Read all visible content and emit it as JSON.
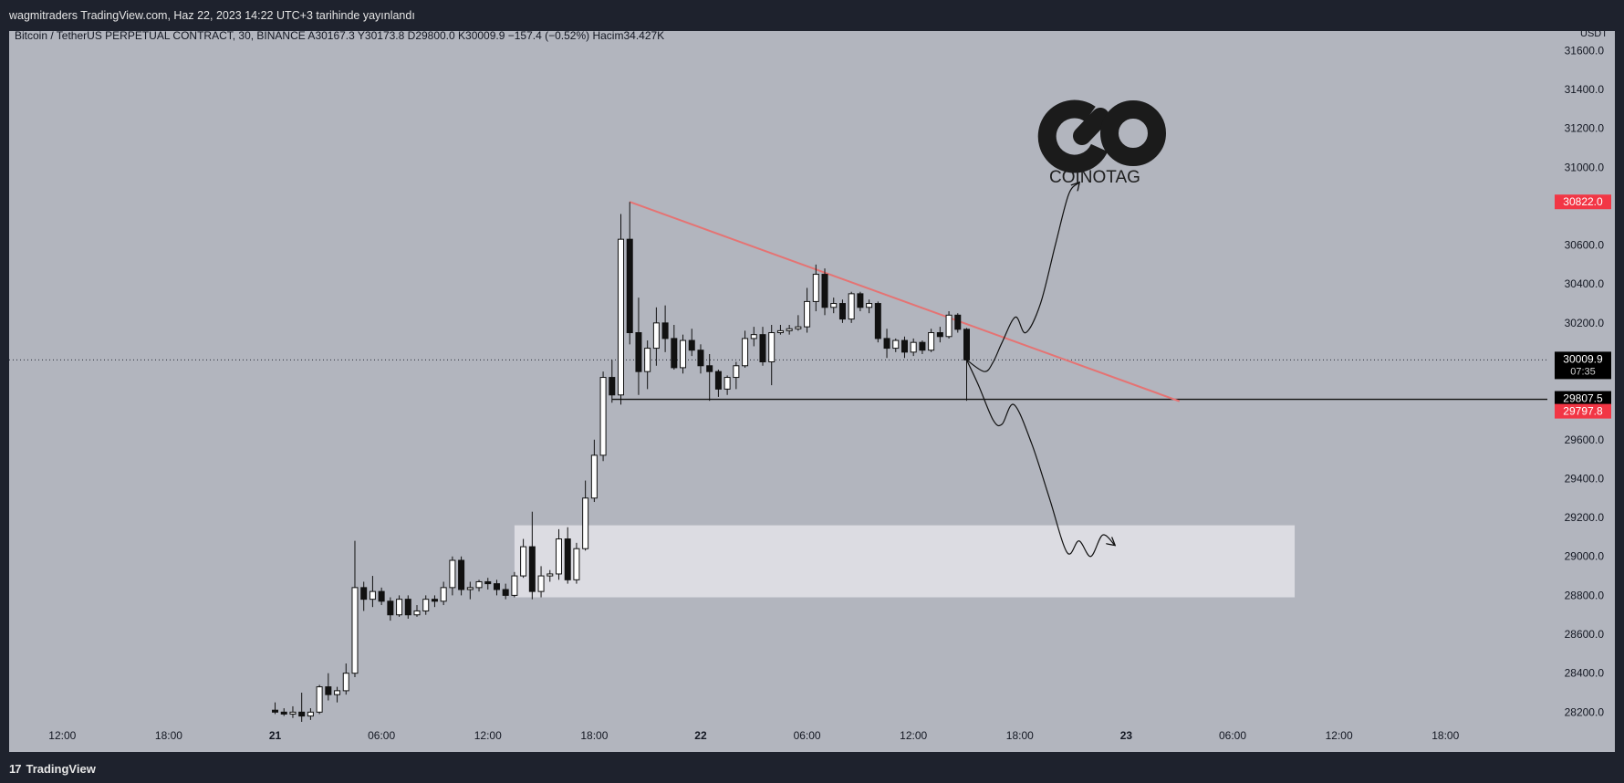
{
  "header": {
    "published": "wagmitraders TradingView.com, Haz 22, 2023 14:22 UTC+3 tarihinde yayınlandı"
  },
  "legend": {
    "text": "Bitcoin / TetherUS PERPETUAL CONTRACT, 30, BINANCE  A30167.3  Y30173.8  D29800.0  K30009.9  −157.4 (−0.52%)  Hacim34.427K"
  },
  "watermark": {
    "text": "COINOTAG"
  },
  "footer": {
    "brand": "TradingView",
    "brand_icon": "tradingview-logo-icon"
  },
  "colors": {
    "background": "#b2b5be",
    "frame": "#1e222d",
    "trendline": "#e57373",
    "zone": "#dcdce2",
    "bull_body": "#ffffff",
    "bear_body": "#111111",
    "red_label": "#f23645",
    "black_label": "#000000"
  },
  "chart_data": {
    "type": "candlestick",
    "title": "Bitcoin / TetherUS PERPETUAL CONTRACT, 30, BINANCE",
    "y_unit": "USDT",
    "ylim": [
      28150,
      31700
    ],
    "yticks": [
      31600.0,
      31400.0,
      31200.0,
      31000.0,
      30600.0,
      30400.0,
      30200.0,
      29600.0,
      29400.0,
      29200.0,
      29000.0,
      28800.0,
      28600.0,
      28400.0,
      28200.0
    ],
    "ytick_labels": [
      "31600.0",
      "31400.0",
      "31200.0",
      "31000.0",
      "30600.0",
      "30400.0",
      "30200.0",
      "29600.0",
      "29400.0",
      "29200.0",
      "29000.0",
      "28800.0",
      "28600.0",
      "28400.0",
      "28200.0"
    ],
    "xlim": [
      "2023-06-20 09:00",
      "2023-06-23 23:45"
    ],
    "xticks": [
      "2023-06-20 12:00",
      "2023-06-20 18:00",
      "2023-06-21 00:00",
      "2023-06-21 06:00",
      "2023-06-21 12:00",
      "2023-06-21 18:00",
      "2023-06-22 00:00",
      "2023-06-22 06:00",
      "2023-06-22 12:00",
      "2023-06-22 18:00",
      "2023-06-23 00:00",
      "2023-06-23 06:00",
      "2023-06-23 12:00",
      "2023-06-23 18:00"
    ],
    "xtick_labels": [
      "12:00",
      "18:00",
      "21",
      "06:00",
      "12:00",
      "18:00",
      "22",
      "06:00",
      "12:00",
      "18:00",
      "23",
      "06:00",
      "12:00",
      "18:00"
    ],
    "bold_xticks": [
      "21",
      "22",
      "23"
    ],
    "candles": [
      {
        "t": "2023-06-21 00:00",
        "o": 28210,
        "h": 28250,
        "l": 28190,
        "c": 28200
      },
      {
        "t": "2023-06-21 00:30",
        "o": 28200,
        "h": 28220,
        "l": 28180,
        "c": 28190
      },
      {
        "t": "2023-06-21 01:00",
        "o": 28190,
        "h": 28230,
        "l": 28170,
        "c": 28200
      },
      {
        "t": "2023-06-21 01:30",
        "o": 28200,
        "h": 28300,
        "l": 28150,
        "c": 28180
      },
      {
        "t": "2023-06-21 02:00",
        "o": 28180,
        "h": 28220,
        "l": 28160,
        "c": 28200
      },
      {
        "t": "2023-06-21 02:30",
        "o": 28200,
        "h": 28340,
        "l": 28190,
        "c": 28330
      },
      {
        "t": "2023-06-21 03:00",
        "o": 28330,
        "h": 28400,
        "l": 28260,
        "c": 28290
      },
      {
        "t": "2023-06-21 03:30",
        "o": 28290,
        "h": 28330,
        "l": 28250,
        "c": 28310
      },
      {
        "t": "2023-06-21 04:00",
        "o": 28310,
        "h": 28450,
        "l": 28290,
        "c": 28400
      },
      {
        "t": "2023-06-21 04:30",
        "o": 28400,
        "h": 29080,
        "l": 28380,
        "c": 28840
      },
      {
        "t": "2023-06-21 05:00",
        "o": 28840,
        "h": 28870,
        "l": 28720,
        "c": 28780
      },
      {
        "t": "2023-06-21 05:30",
        "o": 28780,
        "h": 28900,
        "l": 28740,
        "c": 28820
      },
      {
        "t": "2023-06-21 06:00",
        "o": 28820,
        "h": 28840,
        "l": 28750,
        "c": 28770
      },
      {
        "t": "2023-06-21 06:30",
        "o": 28770,
        "h": 28790,
        "l": 28670,
        "c": 28700
      },
      {
        "t": "2023-06-21 07:00",
        "o": 28700,
        "h": 28800,
        "l": 28690,
        "c": 28780
      },
      {
        "t": "2023-06-21 07:30",
        "o": 28780,
        "h": 28800,
        "l": 28680,
        "c": 28700
      },
      {
        "t": "2023-06-21 08:00",
        "o": 28700,
        "h": 28750,
        "l": 28690,
        "c": 28720
      },
      {
        "t": "2023-06-21 08:30",
        "o": 28720,
        "h": 28800,
        "l": 28700,
        "c": 28780
      },
      {
        "t": "2023-06-21 09:00",
        "o": 28780,
        "h": 28800,
        "l": 28740,
        "c": 28770
      },
      {
        "t": "2023-06-21 09:30",
        "o": 28770,
        "h": 28870,
        "l": 28750,
        "c": 28840
      },
      {
        "t": "2023-06-21 10:00",
        "o": 28840,
        "h": 29000,
        "l": 28800,
        "c": 28980
      },
      {
        "t": "2023-06-21 10:30",
        "o": 28980,
        "h": 29000,
        "l": 28800,
        "c": 28830
      },
      {
        "t": "2023-06-21 11:00",
        "o": 28830,
        "h": 28870,
        "l": 28780,
        "c": 28840
      },
      {
        "t": "2023-06-21 11:30",
        "o": 28840,
        "h": 28880,
        "l": 28820,
        "c": 28870
      },
      {
        "t": "2023-06-21 12:00",
        "o": 28870,
        "h": 28890,
        "l": 28830,
        "c": 28860
      },
      {
        "t": "2023-06-21 12:30",
        "o": 28860,
        "h": 28880,
        "l": 28800,
        "c": 28830
      },
      {
        "t": "2023-06-21 13:00",
        "o": 28830,
        "h": 28860,
        "l": 28780,
        "c": 28800
      },
      {
        "t": "2023-06-21 13:30",
        "o": 28800,
        "h": 28920,
        "l": 28790,
        "c": 28900
      },
      {
        "t": "2023-06-21 14:00",
        "o": 28900,
        "h": 29090,
        "l": 28890,
        "c": 29050
      },
      {
        "t": "2023-06-21 14:30",
        "o": 29050,
        "h": 29230,
        "l": 28780,
        "c": 28820
      },
      {
        "t": "2023-06-21 15:00",
        "o": 28820,
        "h": 28950,
        "l": 28790,
        "c": 28900
      },
      {
        "t": "2023-06-21 15:30",
        "o": 28900,
        "h": 28930,
        "l": 28870,
        "c": 28910
      },
      {
        "t": "2023-06-21 16:00",
        "o": 28910,
        "h": 29140,
        "l": 28880,
        "c": 29090
      },
      {
        "t": "2023-06-21 16:30",
        "o": 29090,
        "h": 29150,
        "l": 28860,
        "c": 28880
      },
      {
        "t": "2023-06-21 17:00",
        "o": 28880,
        "h": 29070,
        "l": 28860,
        "c": 29040
      },
      {
        "t": "2023-06-21 17:30",
        "o": 29040,
        "h": 29390,
        "l": 29030,
        "c": 29300
      },
      {
        "t": "2023-06-21 18:00",
        "o": 29300,
        "h": 29600,
        "l": 29280,
        "c": 29520
      },
      {
        "t": "2023-06-21 18:30",
        "o": 29520,
        "h": 29950,
        "l": 29490,
        "c": 29920
      },
      {
        "t": "2023-06-21 19:00",
        "o": 29920,
        "h": 30010,
        "l": 29790,
        "c": 29830
      },
      {
        "t": "2023-06-21 19:30",
        "o": 29830,
        "h": 30760,
        "l": 29780,
        "c": 30630
      },
      {
        "t": "2023-06-21 20:00",
        "o": 30630,
        "h": 30822,
        "l": 30090,
        "c": 30150
      },
      {
        "t": "2023-06-21 20:30",
        "o": 30150,
        "h": 30330,
        "l": 29830,
        "c": 29950
      },
      {
        "t": "2023-06-21 21:00",
        "o": 29950,
        "h": 30110,
        "l": 29860,
        "c": 30070
      },
      {
        "t": "2023-06-21 21:30",
        "o": 30070,
        "h": 30280,
        "l": 29980,
        "c": 30200
      },
      {
        "t": "2023-06-21 22:00",
        "o": 30200,
        "h": 30290,
        "l": 30050,
        "c": 30120
      },
      {
        "t": "2023-06-21 22:30",
        "o": 30120,
        "h": 30190,
        "l": 29960,
        "c": 29970
      },
      {
        "t": "2023-06-21 23:00",
        "o": 29970,
        "h": 30140,
        "l": 29940,
        "c": 30110
      },
      {
        "t": "2023-06-21 23:30",
        "o": 30110,
        "h": 30170,
        "l": 30030,
        "c": 30060
      },
      {
        "t": "2023-06-22 00:00",
        "o": 30060,
        "h": 30090,
        "l": 29940,
        "c": 29980
      },
      {
        "t": "2023-06-22 00:30",
        "o": 29980,
        "h": 30040,
        "l": 29800,
        "c": 29950
      },
      {
        "t": "2023-06-22 01:00",
        "o": 29950,
        "h": 29960,
        "l": 29820,
        "c": 29860
      },
      {
        "t": "2023-06-22 01:30",
        "o": 29860,
        "h": 29930,
        "l": 29830,
        "c": 29920
      },
      {
        "t": "2023-06-22 02:00",
        "o": 29920,
        "h": 30000,
        "l": 29860,
        "c": 29980
      },
      {
        "t": "2023-06-22 02:30",
        "o": 29980,
        "h": 30160,
        "l": 29970,
        "c": 30120
      },
      {
        "t": "2023-06-22 03:00",
        "o": 30120,
        "h": 30180,
        "l": 30080,
        "c": 30140
      },
      {
        "t": "2023-06-22 03:30",
        "o": 30140,
        "h": 30180,
        "l": 29980,
        "c": 30000
      },
      {
        "t": "2023-06-22 04:00",
        "o": 30000,
        "h": 30190,
        "l": 29880,
        "c": 30150
      },
      {
        "t": "2023-06-22 04:30",
        "o": 30150,
        "h": 30190,
        "l": 30140,
        "c": 30160
      },
      {
        "t": "2023-06-22 05:00",
        "o": 30160,
        "h": 30190,
        "l": 30140,
        "c": 30170
      },
      {
        "t": "2023-06-22 05:30",
        "o": 30170,
        "h": 30240,
        "l": 30160,
        "c": 30180
      },
      {
        "t": "2023-06-22 06:00",
        "o": 30180,
        "h": 30380,
        "l": 30150,
        "c": 30310
      },
      {
        "t": "2023-06-22 06:30",
        "o": 30310,
        "h": 30500,
        "l": 30260,
        "c": 30450
      },
      {
        "t": "2023-06-22 07:00",
        "o": 30450,
        "h": 30480,
        "l": 30240,
        "c": 30280
      },
      {
        "t": "2023-06-22 07:30",
        "o": 30280,
        "h": 30330,
        "l": 30250,
        "c": 30300
      },
      {
        "t": "2023-06-22 08:00",
        "o": 30300,
        "h": 30320,
        "l": 30200,
        "c": 30220
      },
      {
        "t": "2023-06-22 08:30",
        "o": 30220,
        "h": 30360,
        "l": 30200,
        "c": 30350
      },
      {
        "t": "2023-06-22 09:00",
        "o": 30350,
        "h": 30360,
        "l": 30260,
        "c": 30280
      },
      {
        "t": "2023-06-22 09:30",
        "o": 30280,
        "h": 30320,
        "l": 30250,
        "c": 30300
      },
      {
        "t": "2023-06-22 10:00",
        "o": 30300,
        "h": 30310,
        "l": 30100,
        "c": 30120
      },
      {
        "t": "2023-06-22 10:30",
        "o": 30120,
        "h": 30170,
        "l": 30020,
        "c": 30070
      },
      {
        "t": "2023-06-22 11:00",
        "o": 30070,
        "h": 30120,
        "l": 30050,
        "c": 30110
      },
      {
        "t": "2023-06-22 11:30",
        "o": 30110,
        "h": 30130,
        "l": 30020,
        "c": 30050
      },
      {
        "t": "2023-06-22 12:00",
        "o": 30050,
        "h": 30120,
        "l": 30030,
        "c": 30100
      },
      {
        "t": "2023-06-22 12:30",
        "o": 30100,
        "h": 30110,
        "l": 30040,
        "c": 30060
      },
      {
        "t": "2023-06-22 13:00",
        "o": 30060,
        "h": 30170,
        "l": 30050,
        "c": 30150
      },
      {
        "t": "2023-06-22 13:30",
        "o": 30150,
        "h": 30180,
        "l": 30100,
        "c": 30130
      },
      {
        "t": "2023-06-22 14:00",
        "o": 30130,
        "h": 30260,
        "l": 30120,
        "c": 30240
      },
      {
        "t": "2023-06-22 14:30",
        "o": 30240,
        "h": 30250,
        "l": 30150,
        "c": 30167.3
      },
      {
        "t": "2023-06-22 15:00",
        "o": 30167.3,
        "h": 30173.8,
        "l": 29800.0,
        "c": 30009.9
      }
    ],
    "annotations": {
      "trendline": {
        "x1": "2023-06-21 20:00",
        "y1": 30822,
        "x2": "2023-06-23 03:00",
        "y2": 29797.8
      },
      "support_line": {
        "x1": "2023-06-21 19:00",
        "y": 29807.5
      },
      "demand_zone": {
        "x1": "2023-06-21 13:30",
        "x2": "2023-06-23 09:30",
        "y1": 28790,
        "y2": 29160
      },
      "bullish_path": [
        [
          "2023-06-22 15:00",
          30010
        ],
        [
          "2023-06-22 16:00",
          29950
        ],
        [
          "2023-06-22 16:30",
          30000
        ],
        [
          "2023-06-22 17:00",
          30100
        ],
        [
          "2023-06-22 17:45",
          30230
        ],
        [
          "2023-06-22 18:20",
          30150
        ],
        [
          "2023-06-22 19:10",
          30300
        ],
        [
          "2023-06-22 20:00",
          30600
        ],
        [
          "2023-06-22 20:45",
          30860
        ],
        [
          "2023-06-22 21:20",
          30920
        ]
      ],
      "bearish_path": [
        [
          "2023-06-22 15:00",
          30010
        ],
        [
          "2023-06-22 15:40",
          29880
        ],
        [
          "2023-06-22 16:30",
          29700
        ],
        [
          "2023-06-22 17:00",
          29680
        ],
        [
          "2023-06-22 17:40",
          29780
        ],
        [
          "2023-06-22 18:40",
          29580
        ],
        [
          "2023-06-22 19:40",
          29300
        ],
        [
          "2023-06-22 20:40",
          29020
        ],
        [
          "2023-06-22 21:20",
          29080
        ],
        [
          "2023-06-22 22:00",
          29000
        ],
        [
          "2023-06-22 22:40",
          29110
        ],
        [
          "2023-06-22 23:20",
          29060
        ]
      ]
    },
    "price_labels": [
      {
        "value": 30822.0,
        "text": "30822.0",
        "style": "red"
      },
      {
        "value": 30009.9,
        "text": "30009.9",
        "sub": "07:35",
        "style": "black"
      },
      {
        "value": 29807.5,
        "text": "29807.5",
        "style": "black"
      },
      {
        "value": 29797.8,
        "text": "29797.8",
        "style": "red"
      }
    ],
    "current_price": 30009.9
  }
}
